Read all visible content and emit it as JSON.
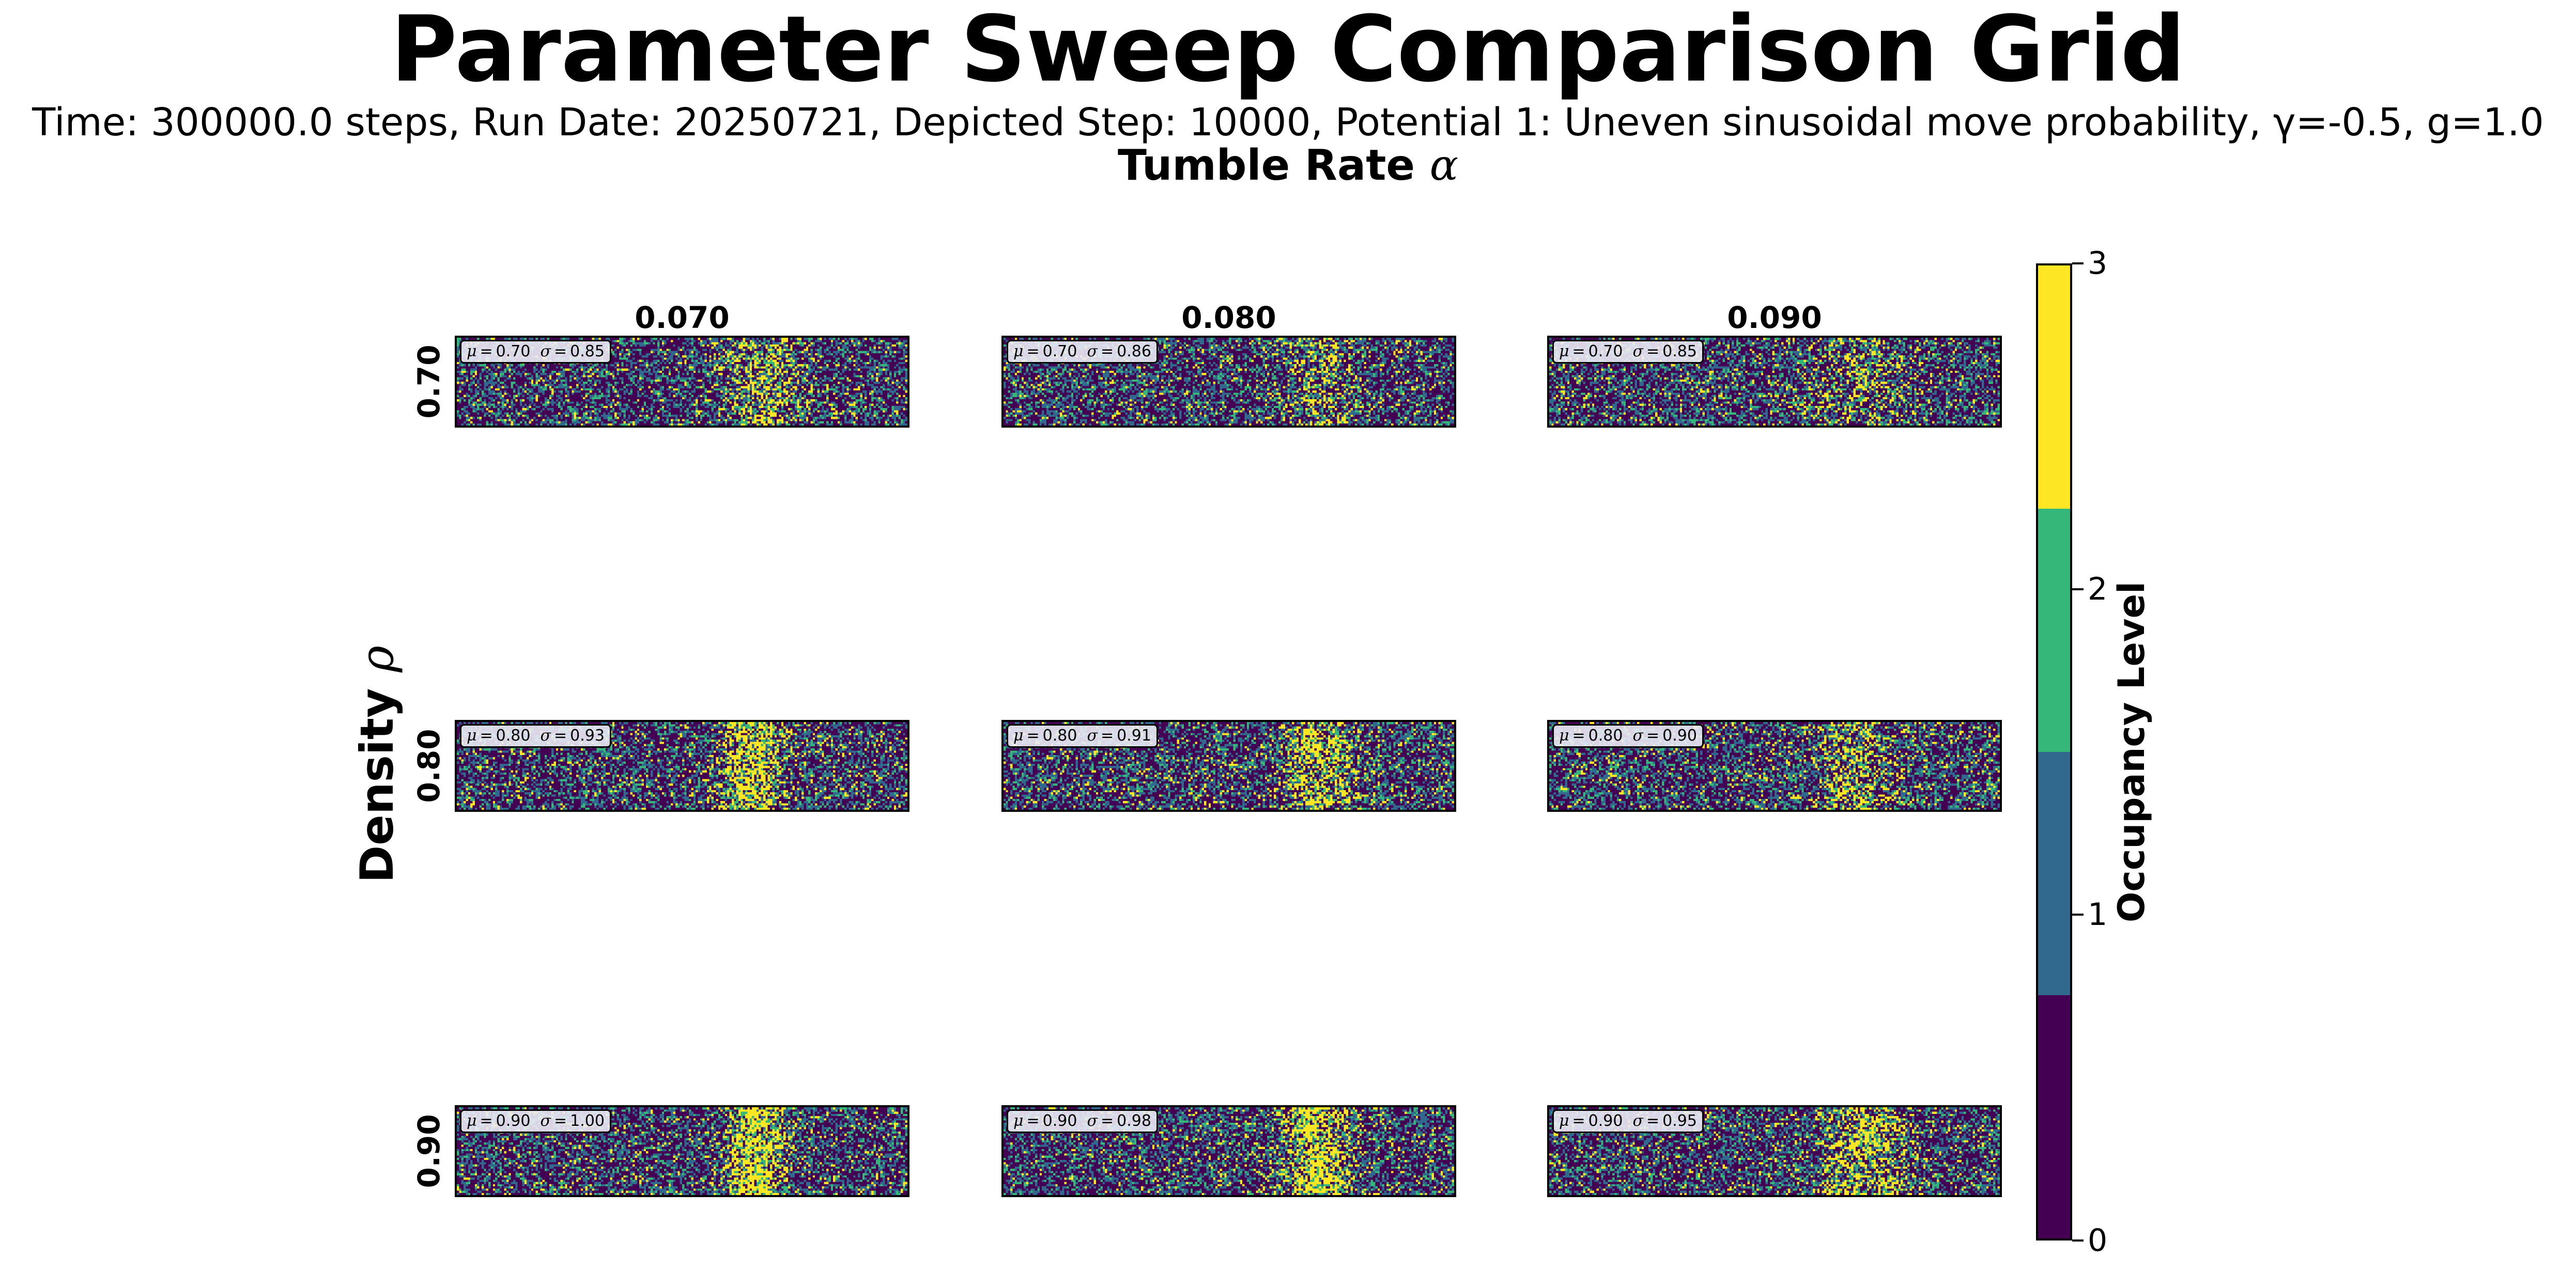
{
  "chart_data": {
    "type": "heatmap",
    "title": "Parameter Sweep Comparison Grid",
    "subtitle": "Time: 300000.0 steps, Run Date: 20250721, Depicted Step: 10000, Potential 1: Uneven sinusoidal move probability, γ=-0.5, g=1.0",
    "column_axis": {
      "label": "Tumble Rate",
      "symbol": "α",
      "values": [
        "0.070",
        "0.080",
        "0.090"
      ]
    },
    "row_axis": {
      "label": "Density",
      "symbol": "ρ",
      "values": [
        "0.70",
        "0.80",
        "0.90"
      ]
    },
    "colorbar": {
      "label": "Occupancy Level",
      "ticks": [
        "0",
        "1",
        "2",
        "3"
      ],
      "range": [
        0,
        3
      ],
      "levels": [
        {
          "value": 0,
          "color": "#440154"
        },
        {
          "value": 1,
          "color": "#31688e"
        },
        {
          "value": 2,
          "color": "#35b779"
        },
        {
          "value": 3,
          "color": "#fde725"
        }
      ]
    },
    "panels": [
      {
        "row": 0,
        "col": 0,
        "mu": "0.70",
        "sigma": "0.85",
        "cluster_center": 0.68,
        "cluster_width": 0.09,
        "cluster_strength": 0.45
      },
      {
        "row": 0,
        "col": 1,
        "mu": "0.70",
        "sigma": "0.86",
        "cluster_center": 0.7,
        "cluster_width": 0.09,
        "cluster_strength": 0.35
      },
      {
        "row": 0,
        "col": 2,
        "mu": "0.70",
        "sigma": "0.85",
        "cluster_center": 0.69,
        "cluster_width": 0.1,
        "cluster_strength": 0.35
      },
      {
        "row": 1,
        "col": 0,
        "mu": "0.80",
        "sigma": "0.93",
        "cluster_center": 0.65,
        "cluster_width": 0.08,
        "cluster_strength": 0.75
      },
      {
        "row": 1,
        "col": 1,
        "mu": "0.80",
        "sigma": "0.91",
        "cluster_center": 0.7,
        "cluster_width": 0.09,
        "cluster_strength": 0.6
      },
      {
        "row": 1,
        "col": 2,
        "mu": "0.80",
        "sigma": "0.90",
        "cluster_center": 0.68,
        "cluster_width": 0.1,
        "cluster_strength": 0.45
      },
      {
        "row": 2,
        "col": 0,
        "mu": "0.90",
        "sigma": "1.00",
        "cluster_center": 0.66,
        "cluster_width": 0.07,
        "cluster_strength": 0.9
      },
      {
        "row": 2,
        "col": 1,
        "mu": "0.90",
        "sigma": "0.98",
        "cluster_center": 0.69,
        "cluster_width": 0.08,
        "cluster_strength": 0.8
      },
      {
        "row": 2,
        "col": 2,
        "mu": "0.90",
        "sigma": "0.95",
        "cluster_center": 0.7,
        "cluster_width": 0.1,
        "cluster_strength": 0.55
      }
    ]
  }
}
